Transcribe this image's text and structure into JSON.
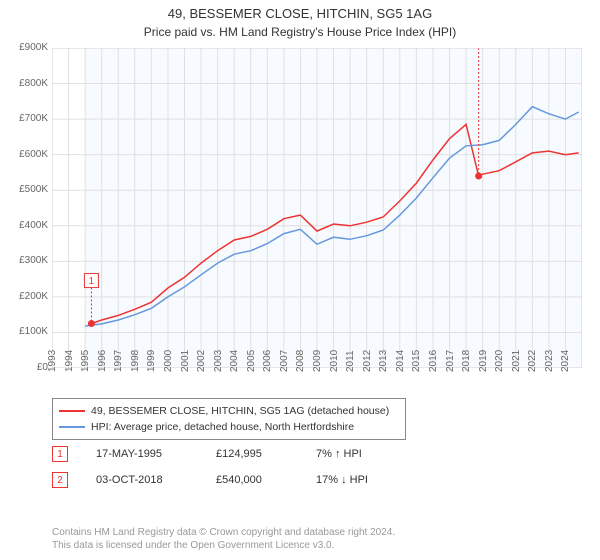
{
  "title": "49, BESSEMER CLOSE, HITCHIN, SG5 1AG",
  "subtitle": "Price paid vs. HM Land Registry's House Price Index (HPI)",
  "chart": {
    "type": "line",
    "background_color": "#ffffff",
    "plot_background_color": "#f7fbff",
    "plot_background_start_year": 1995,
    "grid_color": "#e0e0e0",
    "border_color": "#d0d0d0",
    "axis_color": "#888888",
    "tick_font_size": 10,
    "tick_color": "#666666",
    "x_years": [
      1993,
      1994,
      1995,
      1996,
      1997,
      1998,
      1999,
      2000,
      2001,
      2002,
      2003,
      2004,
      2005,
      2006,
      2007,
      2008,
      2009,
      2010,
      2011,
      2012,
      2013,
      2014,
      2015,
      2016,
      2017,
      2018,
      2019,
      2020,
      2021,
      2022,
      2023,
      2024
    ],
    "x_min": 1993,
    "x_max": 2025,
    "y_min": 0,
    "y_max": 900000,
    "y_tick_positions": [
      0,
      100000,
      200000,
      300000,
      400000,
      500000,
      600000,
      700000,
      800000,
      900000
    ],
    "y_tick_labels": [
      "£0",
      "£100K",
      "£200K",
      "£300K",
      "£400K",
      "£500K",
      "£600K",
      "£700K",
      "£800K",
      "£900K"
    ],
    "series": [
      {
        "name": "price_paid",
        "label": "49, BESSEMER CLOSE, HITCHIN, SG5 1AG (detached house)",
        "color": "#ee3333",
        "line_width": 1.5,
        "data": [
          [
            1995.38,
            124995
          ],
          [
            1996,
            135000
          ],
          [
            1997,
            148000
          ],
          [
            1998,
            165000
          ],
          [
            1999,
            185000
          ],
          [
            2000,
            225000
          ],
          [
            2001,
            255000
          ],
          [
            2002,
            295000
          ],
          [
            2003,
            330000
          ],
          [
            2004,
            360000
          ],
          [
            2005,
            370000
          ],
          [
            2006,
            390000
          ],
          [
            2007,
            420000
          ],
          [
            2008,
            430000
          ],
          [
            2009,
            385000
          ],
          [
            2010,
            405000
          ],
          [
            2011,
            400000
          ],
          [
            2012,
            410000
          ],
          [
            2013,
            425000
          ],
          [
            2014,
            470000
          ],
          [
            2015,
            520000
          ],
          [
            2016,
            585000
          ],
          [
            2017,
            645000
          ],
          [
            2018,
            685000
          ],
          [
            2018.76,
            540000
          ],
          [
            2019,
            545000
          ],
          [
            2020,
            555000
          ],
          [
            2021,
            580000
          ],
          [
            2022,
            605000
          ],
          [
            2023,
            610000
          ],
          [
            2024,
            600000
          ],
          [
            2024.8,
            605000
          ]
        ],
        "markers": [
          {
            "n": "1",
            "x": 1995.38,
            "y": 124995,
            "box_y_offset": -50
          },
          {
            "n": "2",
            "x": 2018.76,
            "y": 540000,
            "box_y_offset": -210
          }
        ]
      },
      {
        "name": "hpi",
        "label": "HPI: Average price, detached house, North Hertfordshire",
        "color": "#6698dd",
        "line_width": 1.5,
        "data": [
          [
            1995,
            118000
          ],
          [
            1996,
            124000
          ],
          [
            1997,
            135000
          ],
          [
            1998,
            150000
          ],
          [
            1999,
            168000
          ],
          [
            2000,
            200000
          ],
          [
            2001,
            228000
          ],
          [
            2002,
            262000
          ],
          [
            2003,
            295000
          ],
          [
            2004,
            320000
          ],
          [
            2005,
            330000
          ],
          [
            2006,
            350000
          ],
          [
            2007,
            378000
          ],
          [
            2008,
            390000
          ],
          [
            2009,
            348000
          ],
          [
            2010,
            368000
          ],
          [
            2011,
            362000
          ],
          [
            2012,
            372000
          ],
          [
            2013,
            388000
          ],
          [
            2014,
            430000
          ],
          [
            2015,
            478000
          ],
          [
            2016,
            535000
          ],
          [
            2017,
            590000
          ],
          [
            2018,
            625000
          ],
          [
            2019,
            628000
          ],
          [
            2020,
            640000
          ],
          [
            2021,
            685000
          ],
          [
            2022,
            735000
          ],
          [
            2023,
            715000
          ],
          [
            2024,
            700000
          ],
          [
            2024.8,
            720000
          ]
        ]
      }
    ]
  },
  "legend": {
    "items": [
      {
        "color": "#ee3333",
        "label": "49, BESSEMER CLOSE, HITCHIN, SG5 1AG (detached house)"
      },
      {
        "color": "#6698dd",
        "label": "HPI: Average price, detached house, North Hertfordshire"
      }
    ]
  },
  "marker_rows": [
    {
      "n": "1",
      "date": "17-MAY-1995",
      "price": "£124,995",
      "delta": "7% ↑ HPI"
    },
    {
      "n": "2",
      "date": "03-OCT-2018",
      "price": "£540,000",
      "delta": "17% ↓ HPI"
    }
  ],
  "footer_line1": "Contains HM Land Registry data © Crown copyright and database right 2024.",
  "footer_line2": "This data is licensed under the Open Government Licence v3.0."
}
